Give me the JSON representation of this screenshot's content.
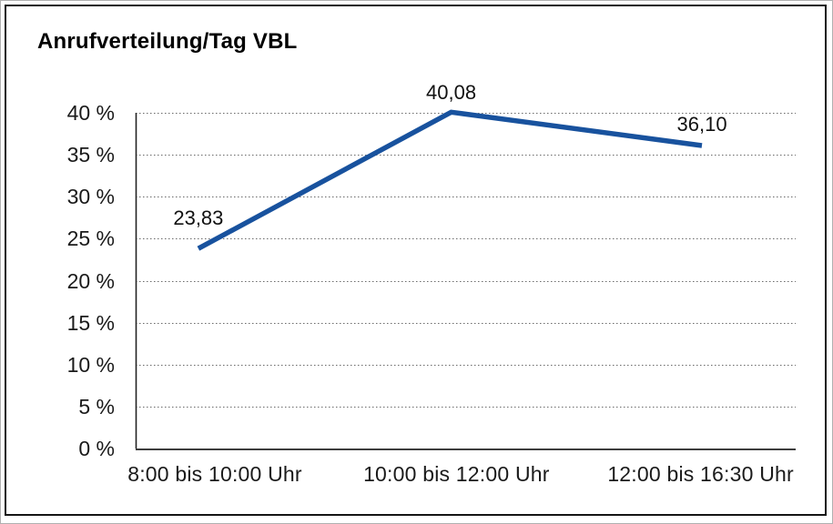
{
  "title": "Anrufverteilung/Tag VBL",
  "chart_data": {
    "type": "line",
    "title": "Anrufverteilung/Tag VBL",
    "categories": [
      "8:00 bis 10:00 Uhr",
      "10:00 bis 12:00 Uhr",
      "12:00 bis 16:30 Uhr"
    ],
    "series": [
      {
        "name": "Anrufverteilung",
        "values": [
          23.83,
          40.08,
          36.1
        ]
      }
    ],
    "data_labels": [
      "23,83",
      "40,08",
      "36,10"
    ],
    "y_ticks": [
      "0 %",
      "5 %",
      "10 %",
      "15 %",
      "20 %",
      "25 %",
      "30 %",
      "35 %",
      "40 %"
    ],
    "y_tick_values": [
      0,
      5,
      10,
      15,
      20,
      25,
      30,
      35,
      40
    ],
    "ylim": [
      0,
      40
    ],
    "xlabel": "",
    "ylabel": "",
    "grid": "horizontal-dotted",
    "legend_position": "none",
    "line_color": "#18529e"
  }
}
